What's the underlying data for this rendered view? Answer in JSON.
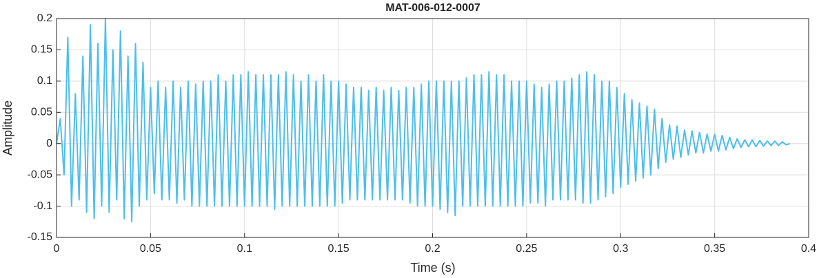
{
  "chart_data": {
    "type": "line",
    "title": "MAT-006-012-0007",
    "xlabel": "Time (s)",
    "ylabel": "Amplitude",
    "color": "#4dbeee",
    "grid": true,
    "xlim": [
      0,
      0.4
    ],
    "xticks": [
      0,
      0.05,
      0.1,
      0.15,
      0.2,
      0.25,
      0.3,
      0.35,
      0.4
    ],
    "ylim": [
      -0.15,
      0.2
    ],
    "yticks": [
      -0.15,
      -0.1,
      -0.05,
      0,
      0.05,
      0.1,
      0.15,
      0.2
    ],
    "x": [
      0,
      0.002,
      0.004,
      0.006,
      0.008,
      0.01,
      0.012,
      0.014,
      0.016,
      0.018,
      0.02,
      0.022,
      0.024,
      0.026,
      0.028,
      0.03,
      0.032,
      0.034,
      0.036,
      0.038,
      0.04,
      0.042,
      0.044,
      0.046,
      0.048,
      0.05,
      0.052,
      0.054,
      0.056,
      0.058,
      0.06,
      0.062,
      0.064,
      0.066,
      0.068,
      0.07,
      0.072,
      0.074,
      0.076,
      0.078,
      0.08,
      0.082,
      0.084,
      0.086,
      0.088,
      0.09,
      0.092,
      0.094,
      0.096,
      0.098,
      0.1,
      0.102,
      0.104,
      0.106,
      0.108,
      0.11,
      0.112,
      0.114,
      0.116,
      0.118,
      0.12,
      0.122,
      0.124,
      0.126,
      0.128,
      0.13,
      0.132,
      0.134,
      0.136,
      0.138,
      0.14,
      0.142,
      0.144,
      0.146,
      0.148,
      0.15,
      0.152,
      0.154,
      0.156,
      0.158,
      0.16,
      0.162,
      0.164,
      0.166,
      0.168,
      0.17,
      0.172,
      0.174,
      0.176,
      0.178,
      0.18,
      0.182,
      0.184,
      0.186,
      0.188,
      0.19,
      0.192,
      0.194,
      0.196,
      0.198,
      0.2,
      0.202,
      0.204,
      0.206,
      0.208,
      0.21,
      0.212,
      0.214,
      0.216,
      0.218,
      0.22,
      0.222,
      0.224,
      0.226,
      0.228,
      0.23,
      0.232,
      0.234,
      0.236,
      0.238,
      0.24,
      0.242,
      0.244,
      0.246,
      0.248,
      0.25,
      0.252,
      0.254,
      0.256,
      0.258,
      0.26,
      0.262,
      0.264,
      0.266,
      0.268,
      0.27,
      0.272,
      0.274,
      0.276,
      0.278,
      0.28,
      0.282,
      0.284,
      0.286,
      0.288,
      0.29,
      0.292,
      0.294,
      0.296,
      0.298,
      0.3,
      0.302,
      0.304,
      0.306,
      0.308,
      0.31,
      0.312,
      0.314,
      0.316,
      0.318,
      0.32,
      0.322,
      0.324,
      0.326,
      0.328,
      0.33,
      0.332,
      0.334,
      0.336,
      0.338,
      0.34,
      0.342,
      0.344,
      0.346,
      0.348,
      0.35,
      0.352,
      0.354,
      0.356,
      0.358,
      0.36,
      0.362,
      0.364,
      0.366,
      0.368,
      0.37,
      0.372,
      0.374,
      0.376,
      0.378,
      0.38,
      0.382,
      0.384,
      0.386,
      0.388,
      0.39
    ],
    "values": [
      0,
      0.04,
      -0.05,
      0.17,
      -0.1,
      0.08,
      -0.09,
      0.14,
      -0.11,
      0.19,
      -0.12,
      0.16,
      -0.1,
      0.2,
      -0.11,
      0.15,
      -0.09,
      0.18,
      -0.12,
      0.14,
      -0.125,
      0.16,
      -0.1,
      0.13,
      -0.09,
      0.09,
      -0.08,
      0.1,
      -0.09,
      0.09,
      -0.09,
      0.1,
      -0.095,
      0.09,
      -0.09,
      0.1,
      -0.1,
      0.095,
      -0.1,
      0.1,
      -0.1,
      0.1,
      -0.1,
      0.11,
      -0.1,
      0.1,
      -0.1,
      0.11,
      -0.1,
      0.11,
      -0.1,
      0.115,
      -0.1,
      0.11,
      -0.1,
      0.11,
      -0.1,
      0.11,
      -0.105,
      0.11,
      -0.1,
      0.115,
      -0.1,
      0.11,
      -0.1,
      0.1,
      -0.1,
      0.11,
      -0.1,
      0.1,
      -0.1,
      0.11,
      -0.1,
      0.1,
      -0.1,
      0.1,
      -0.095,
      0.095,
      -0.09,
      0.09,
      -0.09,
      0.09,
      -0.09,
      0.085,
      -0.09,
      0.09,
      -0.09,
      0.085,
      -0.09,
      0.09,
      -0.09,
      0.085,
      -0.09,
      0.09,
      -0.095,
      0.09,
      -0.1,
      0.095,
      -0.1,
      0.1,
      -0.1,
      0.1,
      -0.105,
      0.1,
      -0.11,
      0.1,
      -0.115,
      0.1,
      -0.1,
      0.105,
      -0.1,
      0.11,
      -0.1,
      0.11,
      -0.1,
      0.115,
      -0.1,
      0.11,
      -0.1,
      0.11,
      -0.1,
      0.1,
      -0.1,
      0.1,
      -0.1,
      0.1,
      -0.095,
      0.095,
      -0.095,
      0.09,
      -0.1,
      0.095,
      -0.09,
      0.1,
      -0.09,
      0.1,
      -0.09,
      0.105,
      -0.09,
      0.11,
      -0.095,
      0.115,
      -0.095,
      0.11,
      -0.09,
      0.1,
      -0.085,
      0.1,
      -0.08,
      0.09,
      -0.07,
      0.08,
      -0.065,
      0.07,
      -0.06,
      0.065,
      -0.055,
      0.06,
      -0.05,
      0.055,
      -0.04,
      0.04,
      -0.03,
      0.03,
      -0.025,
      0.028,
      -0.022,
      0.022,
      -0.018,
      0.02,
      -0.015,
      0.018,
      -0.015,
      0.015,
      -0.012,
      0.015,
      -0.012,
      0.013,
      -0.01,
      0.01,
      -0.008,
      0.008,
      -0.006,
      0.006,
      -0.005,
      0.006,
      -0.005,
      0.005,
      -0.004,
      0.004,
      -0.003,
      0.004,
      -0.003,
      0.003,
      -0.002,
      0
    ]
  }
}
